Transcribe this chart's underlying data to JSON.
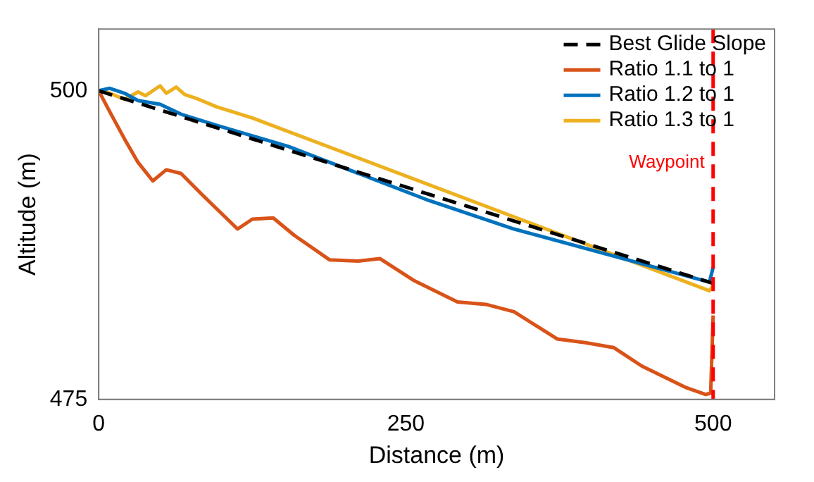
{
  "chart_data": {
    "type": "line",
    "xlabel": "Distance (m)",
    "ylabel": "Altitude (m)",
    "xlim": [
      0,
      550
    ],
    "ylim": [
      475,
      505
    ],
    "xticks": [
      0,
      250,
      500
    ],
    "yticks": [
      475,
      500
    ],
    "grid": false,
    "legend": "top right",
    "marker": "none",
    "series": [
      {
        "name": "Best Glide Slope",
        "color": "#000000",
        "line_style": "dashed",
        "x": [
          0,
          500
        ],
        "values": [
          500,
          484.4
        ]
      },
      {
        "name": "Ratio 1.1 to 1",
        "color": "#d95319",
        "x": [
          0,
          9,
          21,
          32,
          44,
          55,
          67,
          84,
          113,
          125,
          142,
          159,
          188,
          211,
          229,
          257,
          292,
          315,
          338,
          373,
          396,
          419,
          442,
          477,
          494,
          498,
          500
        ],
        "values": [
          500,
          498.3,
          496.1,
          494.2,
          492.7,
          493.6,
          493.3,
          491.6,
          488.8,
          489.6,
          489.7,
          488.3,
          486.3,
          486.2,
          486.4,
          484.6,
          482.9,
          482.7,
          482.1,
          479.9,
          479.6,
          479.2,
          477.7,
          476,
          475.4,
          475.5,
          481.8
        ]
      },
      {
        "name": "Ratio 1.2 to 1",
        "color": "#0072bd",
        "x": [
          0,
          9,
          21,
          32,
          50,
          67,
          96,
          154,
          269,
          338,
          497,
          500
        ],
        "values": [
          500,
          500.2,
          499.8,
          499.2,
          498.9,
          498.1,
          497.2,
          495.5,
          491.1,
          488.8,
          484.5,
          485.7
        ]
      },
      {
        "name": "Ratio 1.3 to 1",
        "color": "#edb120",
        "x": [
          0,
          9,
          21,
          32,
          38,
          50,
          55,
          63,
          70,
          79,
          96,
          125,
          497,
          500
        ],
        "values": [
          500,
          499.8,
          499.3,
          499.9,
          499.6,
          500.4,
          499.8,
          500.3,
          499.7,
          499.4,
          498.7,
          497.8,
          483.8,
          484.2
        ]
      }
    ],
    "ref_lines": [
      {
        "axis": "x",
        "value": 500,
        "label": "Waypoint",
        "color": "#ff0000",
        "line_style": "dashed"
      }
    ]
  }
}
